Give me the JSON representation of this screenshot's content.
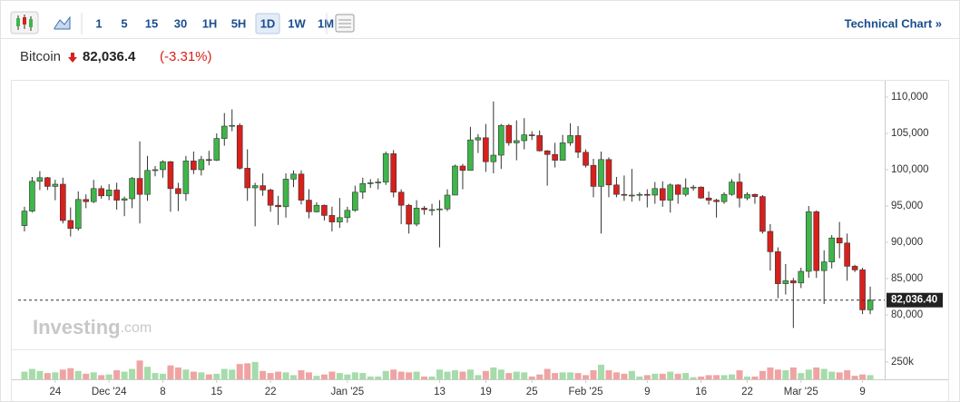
{
  "toolbar": {
    "intervals": [
      "1",
      "5",
      "15",
      "30",
      "1H",
      "5H",
      "1D",
      "1W",
      "1M"
    ],
    "active": "1D",
    "link": "Technical Chart »"
  },
  "header": {
    "name": "Bitcoin",
    "price": "82,036.4",
    "change": "(-3.31%)"
  },
  "watermark": [
    "Investing",
    ".com"
  ],
  "chart_data": {
    "type": "candlestick",
    "x": [
      "2024-11-20",
      "2024-11-21",
      "2024-11-22",
      "2024-11-23",
      "2024-11-24",
      "2024-11-25",
      "2024-11-26",
      "2024-11-27",
      "2024-11-28",
      "2024-11-29",
      "2024-11-30",
      "2024-12-01",
      "2024-12-02",
      "2024-12-03",
      "2024-12-04",
      "2024-12-05",
      "2024-12-06",
      "2024-12-07",
      "2024-12-08",
      "2024-12-09",
      "2024-12-10",
      "2024-12-11",
      "2024-12-12",
      "2024-12-13",
      "2024-12-14",
      "2024-12-15",
      "2024-12-16",
      "2024-12-17",
      "2024-12-18",
      "2024-12-19",
      "2024-12-20",
      "2024-12-21",
      "2024-12-22",
      "2024-12-23",
      "2024-12-24",
      "2024-12-25",
      "2024-12-26",
      "2024-12-27",
      "2024-12-28",
      "2024-12-29",
      "2024-12-30",
      "2024-12-31",
      "2025-01-01",
      "2025-01-02",
      "2025-01-03",
      "2025-01-04",
      "2025-01-05",
      "2025-01-06",
      "2025-01-07",
      "2025-01-08",
      "2025-01-09",
      "2025-01-10",
      "2025-01-11",
      "2025-01-12",
      "2025-01-13",
      "2025-01-14",
      "2025-01-15",
      "2025-01-16",
      "2025-01-17",
      "2025-01-18",
      "2025-01-19",
      "2025-01-20",
      "2025-01-21",
      "2025-01-22",
      "2025-01-23",
      "2025-01-24",
      "2025-01-25",
      "2025-01-26",
      "2025-01-27",
      "2025-01-28",
      "2025-01-29",
      "2025-01-30",
      "2025-01-31",
      "2025-02-01",
      "2025-02-02",
      "2025-02-03",
      "2025-02-04",
      "2025-02-05",
      "2025-02-06",
      "2025-02-07",
      "2025-02-08",
      "2025-02-09",
      "2025-02-10",
      "2025-02-11",
      "2025-02-12",
      "2025-02-13",
      "2025-02-14",
      "2025-02-15",
      "2025-02-16",
      "2025-02-17",
      "2025-02-18",
      "2025-02-19",
      "2025-02-20",
      "2025-02-21",
      "2025-02-22",
      "2025-02-23",
      "2025-02-24",
      "2025-02-25",
      "2025-02-26",
      "2025-02-27",
      "2025-02-28",
      "2025-03-01",
      "2025-03-02",
      "2025-03-03",
      "2025-03-04",
      "2025-03-05",
      "2025-03-06",
      "2025-03-07",
      "2025-03-08",
      "2025-03-09",
      "2025-03-10"
    ],
    "open": [
      92300,
      94300,
      98400,
      98900,
      97700,
      98000,
      93000,
      91900,
      95900,
      95600,
      97400,
      96400,
      97200,
      95800,
      96000,
      98800,
      96600,
      99900,
      100000,
      101100,
      97400,
      96700,
      101200,
      100000,
      101400,
      101300,
      104300,
      106000,
      106100,
      100200,
      97500,
      97800,
      97200,
      95100,
      94900,
      98700,
      99400,
      95800,
      94200,
      95100,
      93700,
      92800,
      93400,
      94400,
      96900,
      98100,
      98200,
      98300,
      102200,
      96900,
      95100,
      92500,
      94700,
      94500,
      94500,
      94600,
      96500,
      100500,
      99900,
      104100,
      104400,
      101100,
      102000,
      106100,
      103700,
      104000,
      104800,
      104700,
      102600,
      102100,
      101300,
      103700,
      104700,
      102400,
      100600,
      97700,
      101400,
      97900,
      96600,
      96500,
      96500,
      96600,
      96500,
      97400,
      95800,
      97900,
      96600,
      97500,
      97600,
      96100,
      95800,
      95600,
      96600,
      98300,
      96100,
      96600,
      96300,
      91500,
      88700,
      84300,
      84700,
      84400,
      86000,
      94200,
      86100,
      87300,
      90600,
      89900,
      86700,
      86200,
      80700
    ],
    "high": [
      94900,
      99000,
      99800,
      99000,
      98600,
      98900,
      94800,
      97000,
      96600,
      98600,
      97800,
      98000,
      98200,
      96300,
      99000,
      103900,
      101900,
      100500,
      101300,
      101200,
      98200,
      101900,
      102500,
      101900,
      102600,
      105000,
      107800,
      108300,
      106400,
      102800,
      98200,
      99500,
      97400,
      96400,
      99500,
      99900,
      99900,
      97300,
      95500,
      95200,
      94900,
      96100,
      94900,
      97800,
      98900,
      98700,
      98800,
      102500,
      102700,
      97300,
      95300,
      95800,
      95000,
      95300,
      95800,
      97300,
      100700,
      100800,
      105900,
      104900,
      106300,
      109400,
      106300,
      106300,
      106800,
      107100,
      105300,
      105400,
      102700,
      103700,
      104800,
      106400,
      106000,
      102800,
      101500,
      102500,
      101700,
      99000,
      99200,
      100100,
      96900,
      97300,
      98300,
      98400,
      98100,
      98000,
      98800,
      97900,
      97700,
      97000,
      96000,
      96900,
      98700,
      99500,
      96900,
      96700,
      96500,
      92500,
      89300,
      87000,
      85100,
      86500,
      95000,
      94400,
      88900,
      91000,
      92800,
      91200,
      86900,
      86500,
      83900
    ],
    "low": [
      91500,
      94100,
      97200,
      97200,
      95800,
      92600,
      90800,
      91600,
      94700,
      95400,
      96000,
      95800,
      94500,
      93600,
      94700,
      92600,
      95700,
      99100,
      98900,
      94200,
      94300,
      95700,
      99400,
      99200,
      100600,
      101200,
      103300,
      105300,
      100000,
      95700,
      92200,
      96400,
      94200,
      92400,
      93400,
      97600,
      95200,
      93300,
      94100,
      93000,
      91500,
      92000,
      92700,
      94200,
      96000,
      97500,
      97300,
      97900,
      96200,
      92500,
      91200,
      92200,
      93800,
      93700,
      89300,
      94300,
      96500,
      97300,
      99900,
      102300,
      99700,
      99500,
      100100,
      103300,
      101300,
      102800,
      104100,
      102500,
      97800,
      100300,
      101300,
      103300,
      101600,
      100300,
      96200,
      91200,
      96200,
      96200,
      95700,
      95600,
      95700,
      94800,
      95300,
      94900,
      94100,
      95300,
      96300,
      97100,
      96000,
      95200,
      93400,
      95300,
      96400,
      94800,
      95800,
      95300,
      91200,
      86100,
      82300,
      82800,
      78200,
      83700,
      85100,
      85100,
      81500,
      86400,
      87800,
      84700,
      85900,
      80100,
      80100
    ],
    "close": [
      94300,
      98400,
      98900,
      97700,
      98000,
      93000,
      91900,
      95900,
      95600,
      97400,
      96400,
      97200,
      95800,
      96000,
      98800,
      96600,
      99900,
      100000,
      101100,
      97400,
      96700,
      101200,
      100000,
      101400,
      101300,
      104300,
      106000,
      106100,
      100200,
      97500,
      97800,
      97200,
      95100,
      94900,
      98700,
      99400,
      95800,
      94200,
      95100,
      93700,
      92800,
      93400,
      94400,
      96900,
      98100,
      98200,
      98300,
      102200,
      96900,
      95100,
      92500,
      94700,
      94500,
      94500,
      94600,
      96500,
      100500,
      99900,
      104100,
      104400,
      101100,
      102000,
      106100,
      103700,
      104000,
      104800,
      104700,
      102600,
      102100,
      101300,
      103700,
      104700,
      102400,
      100600,
      97700,
      101400,
      97900,
      96600,
      96500,
      96500,
      96600,
      96500,
      97400,
      95800,
      97900,
      96600,
      97500,
      97600,
      96100,
      95800,
      95600,
      96600,
      98300,
      96100,
      96600,
      96300,
      91500,
      88700,
      84300,
      84700,
      84400,
      86000,
      94200,
      86100,
      87300,
      90600,
      89900,
      86700,
      86200,
      80700,
      82036.4
    ],
    "up_color": "#3fb54a",
    "down_color": "#d8201c",
    "volume": {
      "values": [
        110000,
        150000,
        120000,
        90000,
        100000,
        140000,
        160000,
        120000,
        80000,
        100000,
        60000,
        70000,
        130000,
        110000,
        150000,
        270000,
        180000,
        90000,
        80000,
        200000,
        170000,
        140000,
        110000,
        100000,
        70000,
        80000,
        150000,
        140000,
        220000,
        230000,
        250000,
        120000,
        90000,
        110000,
        100000,
        60000,
        130000,
        100000,
        50000,
        70000,
        110000,
        90000,
        70000,
        100000,
        90000,
        40000,
        40000,
        120000,
        140000,
        110000,
        100000,
        110000,
        40000,
        40000,
        140000,
        110000,
        130000,
        110000,
        140000,
        60000,
        120000,
        170000,
        140000,
        90000,
        110000,
        100000,
        40000,
        70000,
        150000,
        90000,
        100000,
        100000,
        90000,
        60000,
        130000,
        210000,
        130000,
        100000,
        80000,
        120000,
        40000,
        60000,
        80000,
        80000,
        110000,
        80000,
        90000,
        30000,
        40000,
        60000,
        60000,
        60000,
        70000,
        130000,
        40000,
        40000,
        120000,
        170000,
        140000,
        130000,
        170000,
        90000,
        140000,
        170000,
        150000,
        110000,
        100000,
        130000,
        50000,
        70000,
        60000
      ],
      "ylim": [
        0,
        300000
      ],
      "yticks": [
        {
          "value": 250000,
          "label": "250k"
        }
      ],
      "up_color": "#a5dcaa",
      "down_color": "#f0a3a3"
    },
    "last_price": {
      "value": 82036.4,
      "label": "82,036.40"
    },
    "xlim": [
      "2024-11-18",
      "2025-03-12"
    ],
    "xticks": [
      {
        "value": "2024-11-24",
        "label": "24"
      },
      {
        "value": "2024-12-01",
        "label": "Dec '24"
      },
      {
        "value": "2024-12-08",
        "label": "8"
      },
      {
        "value": "2024-12-15",
        "label": "15"
      },
      {
        "value": "2024-12-22",
        "label": "22"
      },
      {
        "value": "2025-01-01",
        "label": "Jan '25"
      },
      {
        "value": "2025-01-13",
        "label": "13"
      },
      {
        "value": "2025-01-19",
        "label": "19"
      },
      {
        "value": "2025-01-25",
        "label": "25"
      },
      {
        "value": "2025-02-01",
        "label": "Feb '25"
      },
      {
        "value": "2025-02-09",
        "label": "9"
      },
      {
        "value": "2025-02-16",
        "label": "16"
      },
      {
        "value": "2025-02-22",
        "label": "22"
      },
      {
        "value": "2025-03-01",
        "label": "Mar '25"
      },
      {
        "value": "2025-03-09",
        "label": "9"
      }
    ],
    "ylim": [
      76500,
      112000
    ],
    "yticks": [
      {
        "value": 80000,
        "label": "80,000"
      },
      {
        "value": 85000,
        "label": "85,000"
      },
      {
        "value": 90000,
        "label": "90,000"
      },
      {
        "value": 95000,
        "label": "95,000"
      },
      {
        "value": 100000,
        "label": "100,000"
      },
      {
        "value": 105000,
        "label": "105,000"
      },
      {
        "value": 110000,
        "label": "110,000"
      }
    ],
    "grid": false
  }
}
